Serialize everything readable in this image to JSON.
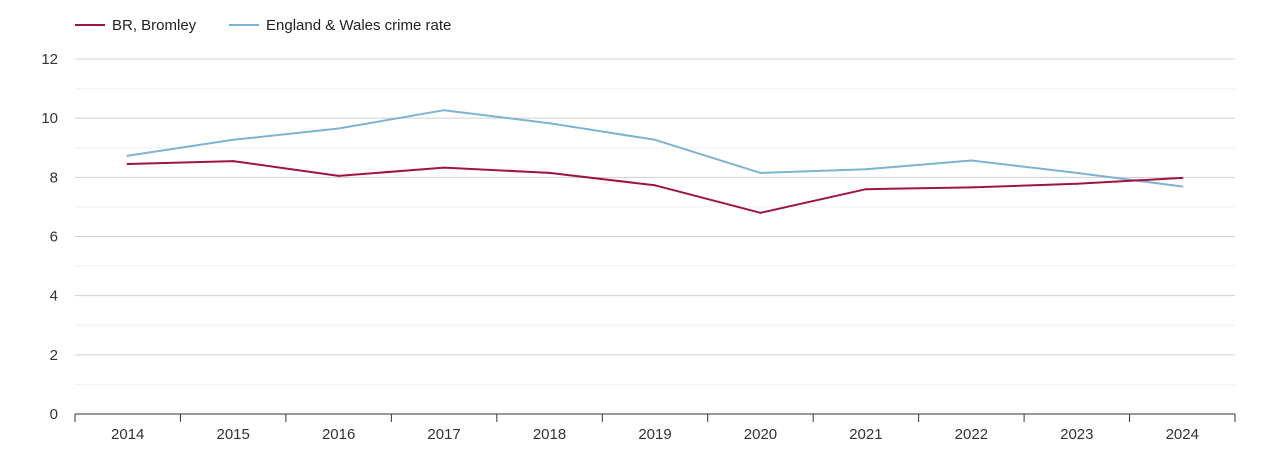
{
  "chart_data": {
    "type": "line",
    "title": "",
    "xlabel": "",
    "ylabel": "",
    "categories": [
      "2014",
      "2015",
      "2016",
      "2017",
      "2018",
      "2019",
      "2020",
      "2021",
      "2022",
      "2023",
      "2024"
    ],
    "ylim": [
      0,
      12
    ],
    "yticks": [
      "0",
      "2",
      "4",
      "6",
      "8",
      "10",
      "12"
    ],
    "grid": true,
    "legend_position": "top-left",
    "series": [
      {
        "name": "BR, Bromley",
        "color": "#a0153e",
        "values": [
          8.45,
          8.55,
          8.05,
          8.33,
          8.15,
          7.73,
          6.8,
          7.6,
          7.66,
          7.78,
          7.98
        ]
      },
      {
        "name": "England & Wales crime rate",
        "color": "#7eb3d3",
        "values": [
          8.73,
          9.27,
          9.65,
          10.27,
          9.83,
          9.27,
          8.15,
          8.27,
          8.57,
          8.15,
          7.69
        ]
      }
    ]
  }
}
